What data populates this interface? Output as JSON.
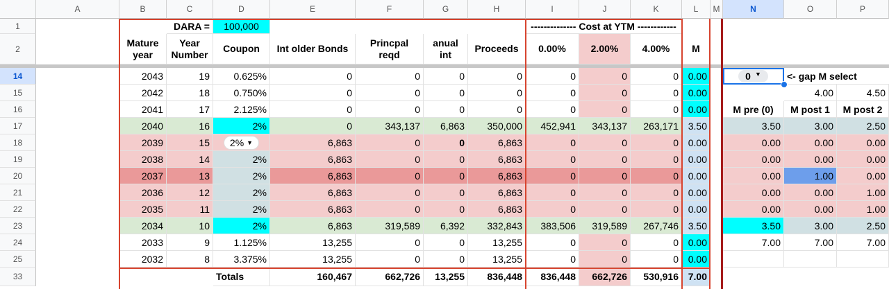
{
  "columns": [
    "A",
    "B",
    "C",
    "D",
    "E",
    "F",
    "G",
    "H",
    "I",
    "J",
    "K",
    "L",
    "M",
    "N",
    "O",
    "P"
  ],
  "selected_column": "N",
  "rows": [
    "1",
    "2",
    "14",
    "15",
    "16",
    "17",
    "18",
    "19",
    "20",
    "21",
    "22",
    "23",
    "24",
    "25",
    "33"
  ],
  "selected_row": "14",
  "header": {
    "dara_label": "DARA =",
    "dara_value": "100,000",
    "cost_at_ytm": "-------------- Cost at YTM ------------",
    "mature_year": "Mature year",
    "year_number": "Year Number",
    "coupon": "Coupon",
    "int_older": "Int older Bonds",
    "princpal": "Princpal reqd",
    "anual_int": "anual int",
    "proceeds": "Proceeds",
    "ytm0": "0.00%",
    "ytm2": "2.00%",
    "ytm4": "4.00%",
    "m": "M"
  },
  "side": {
    "gap_select_value": "0",
    "gap_select_label": "<- gap M select",
    "o15": "4.00",
    "p15": "4.50",
    "m_pre": "M pre (0)",
    "m_post1": "M post 1",
    "m_post2": "M post 2"
  },
  "data_rows": [
    {
      "b": "2043",
      "c": "19",
      "d": "0.625%",
      "e": "0",
      "f": "0",
      "g": "0",
      "h": "0",
      "i": "0",
      "j": "0",
      "k": "0",
      "l": "0.00",
      "n": "",
      "o": "",
      "p": ""
    },
    {
      "b": "2042",
      "c": "18",
      "d": "0.750%",
      "e": "0",
      "f": "0",
      "g": "0",
      "h": "0",
      "i": "0",
      "j": "0",
      "k": "0",
      "l": "0.00",
      "n": "",
      "o": "4.00",
      "p": "4.50"
    },
    {
      "b": "2041",
      "c": "17",
      "d": "2.125%",
      "e": "0",
      "f": "0",
      "g": "0",
      "h": "0",
      "i": "0",
      "j": "0",
      "k": "0",
      "l": "0.00",
      "n": "M pre (0)",
      "o": "M post 1",
      "p": "M post 2"
    },
    {
      "b": "2040",
      "c": "16",
      "d": "2%",
      "e": "0",
      "f": "343,137",
      "g": "6,863",
      "h": "350,000",
      "i": "452,941",
      "j": "343,137",
      "k": "263,171",
      "l": "3.50",
      "n": "3.50",
      "o": "3.00",
      "p": "2.50"
    },
    {
      "b": "2039",
      "c": "15",
      "d": "2%",
      "e": "6,863",
      "f": "0",
      "g": "0",
      "h": "6,863",
      "i": "0",
      "j": "0",
      "k": "0",
      "l": "0.00",
      "n": "0.00",
      "o": "0.00",
      "p": "0.00"
    },
    {
      "b": "2038",
      "c": "14",
      "d": "2%",
      "e": "6,863",
      "f": "0",
      "g": "0",
      "h": "6,863",
      "i": "0",
      "j": "0",
      "k": "0",
      "l": "0.00",
      "n": "0.00",
      "o": "0.00",
      "p": "0.00"
    },
    {
      "b": "2037",
      "c": "13",
      "d": "2%",
      "e": "6,863",
      "f": "0",
      "g": "0",
      "h": "6,863",
      "i": "0",
      "j": "0",
      "k": "0",
      "l": "0.00",
      "n": "0.00",
      "o": "1.00",
      "p": "0.00"
    },
    {
      "b": "2036",
      "c": "12",
      "d": "2%",
      "e": "6,863",
      "f": "0",
      "g": "0",
      "h": "6,863",
      "i": "0",
      "j": "0",
      "k": "0",
      "l": "0.00",
      "n": "0.00",
      "o": "0.00",
      "p": "1.00"
    },
    {
      "b": "2035",
      "c": "11",
      "d": "2%",
      "e": "6,863",
      "f": "0",
      "g": "0",
      "h": "6,863",
      "i": "0",
      "j": "0",
      "k": "0",
      "l": "0.00",
      "n": "0.00",
      "o": "0.00",
      "p": "1.00"
    },
    {
      "b": "2034",
      "c": "10",
      "d": "2%",
      "e": "6,863",
      "f": "319,589",
      "g": "6,392",
      "h": "332,843",
      "i": "383,506",
      "j": "319,589",
      "k": "267,746",
      "l": "3.50",
      "n": "3.50",
      "o": "3.00",
      "p": "2.50"
    },
    {
      "b": "2033",
      "c": "9",
      "d": "1.125%",
      "e": "13,255",
      "f": "0",
      "g": "0",
      "h": "13,255",
      "i": "0",
      "j": "0",
      "k": "0",
      "l": "0.00",
      "n": "7.00",
      "o": "7.00",
      "p": "7.00"
    },
    {
      "b": "2032",
      "c": "8",
      "d": "3.375%",
      "e": "13,255",
      "f": "0",
      "g": "0",
      "h": "13,255",
      "i": "0",
      "j": "0",
      "k": "0",
      "l": "0.00",
      "n": "",
      "o": "",
      "p": ""
    }
  ],
  "totals": {
    "label": "Totals",
    "e": "160,467",
    "f": "662,726",
    "g": "13,255",
    "h": "836,448",
    "i": "836,448",
    "j": "662,726",
    "k": "530,916",
    "l": "7.00"
  },
  "colors": {
    "green": "#d9ead3",
    "pink": "#f4cccc",
    "pink_dark": "#ea9999",
    "cyan": "#00ffff",
    "light_blue": "#cfe2f3",
    "blue_gray": "#d0e0e3",
    "blue": "#6d9eeb",
    "border_red": "#d7442f"
  }
}
